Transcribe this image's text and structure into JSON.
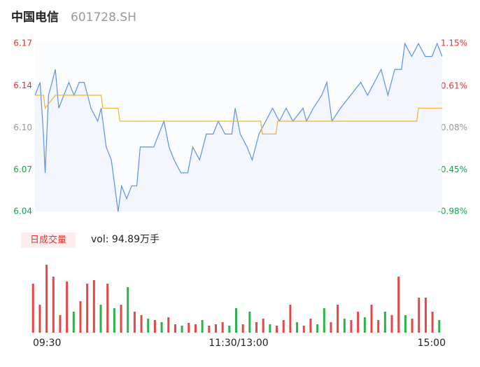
{
  "header": {
    "name": "中国电信",
    "code": "601728.SH"
  },
  "chart_data": [
    {
      "type": "line",
      "up_color": "#e8312f",
      "down_color": "#14a34a",
      "flat_color": "#999999",
      "xlim": [
        0,
        240
      ],
      "xticks": [
        {
          "value": 0,
          "label": "09:30"
        },
        {
          "value": 120,
          "label": "11:30/13:00"
        },
        {
          "value": 240,
          "label": "15:00"
        }
      ],
      "ylim": [
        6.0401,
        6.1701
      ],
      "yticks": [
        {
          "value": 6.1701,
          "label": "6.17"
        },
        {
          "value": 6.1374,
          "label": "6.14"
        },
        {
          "value": 6.1048,
          "label": "6.10"
        },
        {
          "value": 6.0724,
          "label": "6.07"
        },
        {
          "value": 6.0401,
          "label": "6.04"
        }
      ],
      "y2lim": [
        -0.98,
        1.15
      ],
      "y2ticks": [
        {
          "value": 1.15,
          "label": "1.15%"
        },
        {
          "value": 0.61,
          "label": "0.61%"
        },
        {
          "value": 0.08,
          "label": "0.08%"
        },
        {
          "value": -0.45,
          "label": "-0.45%"
        },
        {
          "value": -0.98,
          "label": "-0.98%"
        }
      ],
      "series": [
        {
          "color": "#5b8ff0",
          "x": [
            0,
            3,
            5,
            6,
            8,
            10,
            12,
            14,
            17,
            20,
            23,
            26,
            29,
            31,
            33,
            37,
            39,
            42,
            45,
            47,
            49,
            51,
            54,
            57,
            60,
            62,
            66,
            70,
            73,
            76,
            79,
            82,
            86,
            90,
            93,
            97,
            101,
            105,
            108,
            112,
            116,
            118,
            121,
            125,
            128,
            132,
            136,
            140,
            144,
            148,
            152,
            158,
            160,
            164,
            169,
            172,
            175,
            180,
            186,
            192,
            196,
            200,
            204,
            208,
            212,
            216,
            218,
            222,
            226,
            230,
            234,
            237,
            240
          ],
          "values": [
            6.13,
            6.14,
            6.1,
            6.07,
            6.13,
            6.14,
            6.15,
            6.12,
            6.13,
            6.14,
            6.13,
            6.14,
            6.14,
            6.13,
            6.12,
            6.11,
            6.12,
            6.09,
            6.08,
            6.06,
            6.04,
            6.06,
            6.05,
            6.06,
            6.06,
            6.09,
            6.09,
            6.09,
            6.1,
            6.11,
            6.09,
            6.08,
            6.07,
            6.07,
            6.09,
            6.08,
            6.1,
            6.1,
            6.11,
            6.1,
            6.1,
            6.12,
            6.1,
            6.09,
            6.08,
            6.1,
            6.11,
            6.12,
            6.11,
            6.12,
            6.11,
            6.12,
            6.11,
            6.12,
            6.13,
            6.14,
            6.11,
            6.12,
            6.13,
            6.14,
            6.13,
            6.14,
            6.15,
            6.13,
            6.15,
            6.15,
            6.17,
            6.16,
            6.17,
            6.16,
            6.16,
            6.17,
            6.16
          ]
        },
        {
          "color": "#f0b43c",
          "x": [
            0,
            5,
            6,
            12,
            39,
            40,
            49,
            50,
            133,
            134,
            142,
            143,
            225,
            226,
            240
          ],
          "values": [
            6.13,
            6.13,
            6.12,
            6.13,
            6.13,
            6.12,
            6.12,
            6.11,
            6.11,
            6.1,
            6.1,
            6.11,
            6.11,
            6.12,
            6.12
          ]
        }
      ]
    },
    {
      "type": "bar",
      "title": "日成交量",
      "annotation": "vol: 94.89万手",
      "xlim": [
        -3,
        243
      ],
      "ylim": [
        0,
        100
      ],
      "x": [
        0,
        4,
        8,
        12,
        16,
        20,
        24,
        28,
        32,
        36,
        40,
        44,
        48,
        52,
        56,
        60,
        64,
        68,
        72,
        76,
        80,
        84,
        88,
        92,
        96,
        100,
        104,
        108,
        112,
        116,
        120,
        124,
        128,
        132,
        136,
        140,
        144,
        148,
        152,
        156,
        160,
        164,
        168,
        172,
        176,
        180,
        184,
        188,
        192,
        196,
        200,
        204,
        208,
        212,
        216,
        220,
        224,
        228,
        232,
        236,
        240
      ],
      "values": [
        70,
        40,
        97,
        80,
        25,
        73,
        30,
        45,
        70,
        75,
        40,
        70,
        35,
        40,
        65,
        30,
        25,
        20,
        18,
        15,
        22,
        12,
        10,
        14,
        12,
        18,
        10,
        12,
        15,
        10,
        35,
        12,
        30,
        15,
        20,
        12,
        10,
        18,
        40,
        15,
        10,
        20,
        12,
        35,
        15,
        40,
        20,
        18,
        30,
        22,
        40,
        18,
        30,
        25,
        80,
        25,
        20,
        50,
        50,
        30,
        18
      ],
      "colors": [
        "#e84545",
        "#e84545",
        "#e84545",
        "#e84545",
        "#e84545",
        "#e84545",
        "#2bb24c",
        "#e84545",
        "#e84545",
        "#e84545",
        "#2bb24c",
        "#e84545",
        "#2bb24c",
        "#e84545",
        "#2bb24c",
        "#e84545",
        "#e84545",
        "#2bb24c",
        "#e84545",
        "#2bb24c",
        "#e84545",
        "#e84545",
        "#2bb24c",
        "#e84545",
        "#e84545",
        "#2bb24c",
        "#e84545",
        "#e84545",
        "#e84545",
        "#2bb24c",
        "#2bb24c",
        "#e84545",
        "#2bb24c",
        "#e84545",
        "#e84545",
        "#2bb24c",
        "#e84545",
        "#e84545",
        "#e84545",
        "#2bb24c",
        "#e84545",
        "#e84545",
        "#2bb24c",
        "#2bb24c",
        "#e84545",
        "#e84545",
        "#2bb24c",
        "#e84545",
        "#e84545",
        "#2bb24c",
        "#e84545",
        "#e84545",
        "#2bb24c",
        "#e84545",
        "#e84545",
        "#2bb24c",
        "#e84545",
        "#e84545",
        "#e84545",
        "#e84545",
        "#2bb24c"
      ]
    }
  ]
}
